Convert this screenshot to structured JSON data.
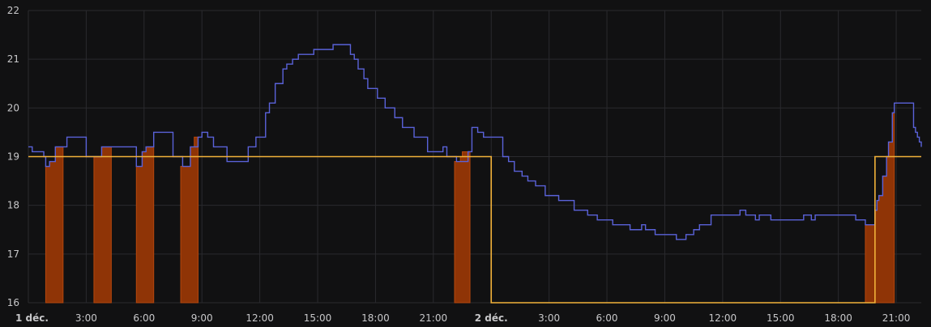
{
  "chart_data": {
    "type": "line",
    "x_unit": "hours",
    "xlim": [
      0,
      46.3
    ],
    "ylim": [
      16,
      22
    ],
    "grid": true,
    "legend": "none",
    "y_ticks": [
      "16",
      "17",
      "18",
      "19",
      "20",
      "21",
      "22"
    ],
    "x_ticks": [
      {
        "x": 0,
        "label": "1 déc.",
        "bold": true
      },
      {
        "x": 3,
        "label": "3:00"
      },
      {
        "x": 6,
        "label": "6:00"
      },
      {
        "x": 9,
        "label": "9:00"
      },
      {
        "x": 12,
        "label": "12:00"
      },
      {
        "x": 15,
        "label": "15:00"
      },
      {
        "x": 18,
        "label": "18:00"
      },
      {
        "x": 21,
        "label": "21:00"
      },
      {
        "x": 24,
        "label": "2 déc.",
        "bold": true
      },
      {
        "x": 27,
        "label": "3:00"
      },
      {
        "x": 30,
        "label": "6:00"
      },
      {
        "x": 33,
        "label": "9:00"
      },
      {
        "x": 36,
        "label": "12:00"
      },
      {
        "x": 39,
        "label": "15:00"
      },
      {
        "x": 42,
        "label": "18:00"
      },
      {
        "x": 45,
        "label": "21:00"
      }
    ],
    "colors": {
      "temperature": "#5a62d9",
      "setpoint": "#f2b23a",
      "heating": "#8f3406",
      "heating_edge": "#b5470d"
    },
    "series": [
      {
        "key": "temperature",
        "step": true,
        "points": [
          [
            0,
            19.2
          ],
          [
            0.2,
            19.1
          ],
          [
            0.8,
            19.0
          ],
          [
            0.9,
            18.8
          ],
          [
            1.1,
            18.9
          ],
          [
            1.4,
            19.2
          ],
          [
            2.0,
            19.4
          ],
          [
            3.0,
            19.0
          ],
          [
            3.8,
            19.2
          ],
          [
            5.6,
            18.8
          ],
          [
            5.9,
            19.1
          ],
          [
            6.1,
            19.2
          ],
          [
            6.5,
            19.5
          ],
          [
            7.5,
            19.0
          ],
          [
            8.0,
            18.8
          ],
          [
            8.4,
            19.2
          ],
          [
            8.8,
            19.4
          ],
          [
            9.0,
            19.5
          ],
          [
            9.3,
            19.4
          ],
          [
            9.6,
            19.2
          ],
          [
            10.3,
            18.9
          ],
          [
            11.4,
            19.2
          ],
          [
            11.8,
            19.4
          ],
          [
            12.3,
            19.9
          ],
          [
            12.5,
            20.1
          ],
          [
            12.8,
            20.5
          ],
          [
            13.2,
            20.8
          ],
          [
            13.4,
            20.9
          ],
          [
            13.7,
            21.0
          ],
          [
            14.0,
            21.1
          ],
          [
            14.8,
            21.2
          ],
          [
            15.8,
            21.3
          ],
          [
            16.7,
            21.1
          ],
          [
            16.9,
            21.0
          ],
          [
            17.1,
            20.8
          ],
          [
            17.4,
            20.6
          ],
          [
            17.6,
            20.4
          ],
          [
            18.1,
            20.2
          ],
          [
            18.5,
            20.0
          ],
          [
            19.0,
            19.8
          ],
          [
            19.4,
            19.6
          ],
          [
            20.0,
            19.4
          ],
          [
            20.7,
            19.1
          ],
          [
            21.5,
            19.2
          ],
          [
            21.7,
            19.0
          ],
          [
            22.2,
            18.9
          ],
          [
            22.8,
            19.1
          ],
          [
            23.0,
            19.6
          ],
          [
            23.3,
            19.5
          ],
          [
            23.6,
            19.4
          ],
          [
            24.6,
            19.0
          ],
          [
            24.9,
            18.9
          ],
          [
            25.2,
            18.7
          ],
          [
            25.6,
            18.6
          ],
          [
            25.9,
            18.5
          ],
          [
            26.3,
            18.4
          ],
          [
            26.8,
            18.2
          ],
          [
            27.5,
            18.1
          ],
          [
            28.3,
            17.9
          ],
          [
            29.0,
            17.8
          ],
          [
            29.5,
            17.7
          ],
          [
            30.3,
            17.6
          ],
          [
            31.2,
            17.5
          ],
          [
            31.8,
            17.6
          ],
          [
            32.0,
            17.5
          ],
          [
            32.5,
            17.4
          ],
          [
            33.6,
            17.3
          ],
          [
            34.1,
            17.4
          ],
          [
            34.5,
            17.5
          ],
          [
            34.8,
            17.6
          ],
          [
            35.4,
            17.8
          ],
          [
            36.9,
            17.9
          ],
          [
            37.2,
            17.8
          ],
          [
            37.7,
            17.7
          ],
          [
            37.9,
            17.8
          ],
          [
            38.5,
            17.7
          ],
          [
            40.2,
            17.8
          ],
          [
            40.6,
            17.7
          ],
          [
            40.8,
            17.8
          ],
          [
            42.9,
            17.7
          ],
          [
            43.4,
            17.6
          ],
          [
            43.9,
            17.9
          ],
          [
            44.0,
            18.1
          ],
          [
            44.1,
            18.2
          ],
          [
            44.3,
            18.6
          ],
          [
            44.5,
            19.0
          ],
          [
            44.6,
            19.3
          ],
          [
            44.8,
            19.9
          ],
          [
            44.9,
            20.1
          ],
          [
            45.9,
            19.6
          ],
          [
            46.0,
            19.5
          ],
          [
            46.1,
            19.4
          ],
          [
            46.2,
            19.3
          ],
          [
            46.3,
            19.2
          ]
        ]
      },
      {
        "key": "setpoint",
        "step": true,
        "points": [
          [
            0,
            19.0
          ],
          [
            24.0,
            16.0
          ],
          [
            43.9,
            19.0
          ],
          [
            46.3,
            19.0
          ]
        ]
      }
    ],
    "heating_periods": [
      {
        "start": 0.9,
        "end": 1.8,
        "profile": [
          [
            0.9,
            18.8
          ],
          [
            1.1,
            18.9
          ],
          [
            1.4,
            19.2
          ]
        ]
      },
      {
        "start": 3.4,
        "end": 4.3,
        "profile": [
          [
            3.4,
            19.0
          ],
          [
            3.8,
            19.2
          ]
        ]
      },
      {
        "start": 5.6,
        "end": 6.5,
        "profile": [
          [
            5.6,
            18.8
          ],
          [
            5.9,
            19.1
          ],
          [
            6.1,
            19.2
          ]
        ]
      },
      {
        "start": 7.9,
        "end": 8.8,
        "profile": [
          [
            7.9,
            18.8
          ],
          [
            8.4,
            19.2
          ],
          [
            8.6,
            19.4
          ]
        ]
      },
      {
        "start": 22.1,
        "end": 22.9,
        "profile": [
          [
            22.1,
            18.9
          ],
          [
            22.4,
            19.0
          ],
          [
            22.5,
            19.1
          ]
        ]
      },
      {
        "start": 43.4,
        "end": 44.9,
        "profile": [
          [
            43.4,
            17.6
          ],
          [
            43.9,
            17.9
          ],
          [
            44.0,
            18.1
          ],
          [
            44.1,
            18.2
          ],
          [
            44.3,
            18.6
          ],
          [
            44.5,
            19.0
          ],
          [
            44.6,
            19.3
          ],
          [
            44.8,
            19.9
          ]
        ]
      }
    ]
  }
}
